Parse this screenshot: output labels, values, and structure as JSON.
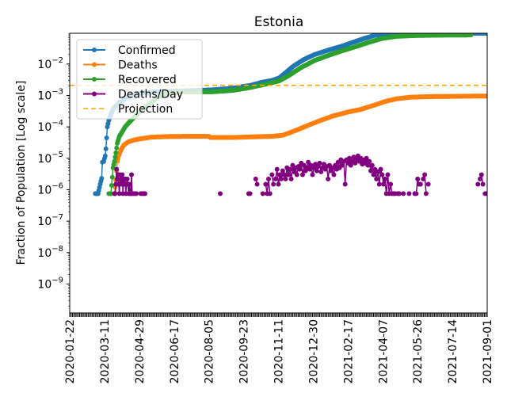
{
  "chart_data": {
    "type": "line",
    "title": "Estonia",
    "xlabel": "",
    "ylabel": "Fraction of Population [Log scale]",
    "yscale": "log",
    "ylim": [
      1.2e-10,
      0.095
    ],
    "xlim": [
      "2020-01-22",
      "2021-09-01"
    ],
    "x_start_date": "2020-01-22",
    "x_unit": "days since 2020-01-22",
    "xlim_days": [
      0,
      588
    ],
    "x_ticks": [
      {
        "day": 0,
        "label": "2020-01-22"
      },
      {
        "day": 49,
        "label": "2020-03-11"
      },
      {
        "day": 98,
        "label": "2020-04-29"
      },
      {
        "day": 147,
        "label": "2020-06-17"
      },
      {
        "day": 196,
        "label": "2020-08-05"
      },
      {
        "day": 245,
        "label": "2020-09-23"
      },
      {
        "day": 294,
        "label": "2020-11-11"
      },
      {
        "day": 343,
        "label": "2020-12-30"
      },
      {
        "day": 392,
        "label": "2021-02-17"
      },
      {
        "day": 441,
        "label": "2021-04-07"
      },
      {
        "day": 490,
        "label": "2021-05-26"
      },
      {
        "day": 539,
        "label": "2021-07-14"
      },
      {
        "day": 588,
        "label": "2021-09-01"
      }
    ],
    "y_ticks": [
      {
        "value": 0.01,
        "base": "10",
        "exp": "−2"
      },
      {
        "value": 0.001,
        "base": "10",
        "exp": "−3"
      },
      {
        "value": 0.0001,
        "base": "10",
        "exp": "−4"
      },
      {
        "value": 1e-05,
        "base": "10",
        "exp": "−5"
      },
      {
        "value": 1e-06,
        "base": "10",
        "exp": "−6"
      },
      {
        "value": 1e-07,
        "base": "10",
        "exp": "−7"
      },
      {
        "value": 1e-08,
        "base": "10",
        "exp": "−8"
      },
      {
        "value": 1e-09,
        "base": "10",
        "exp": "−9"
      }
    ],
    "grid": false,
    "legend_position": "top-left",
    "series": [
      {
        "name": "Confirmed",
        "color": "#1f77b4",
        "style": "line-marker",
        "points": [
          [
            36,
            7.5e-07
          ],
          [
            40,
            7.5e-07
          ],
          [
            43,
            1.5e-06
          ],
          [
            45,
            2.3e-06
          ],
          [
            46,
            7.5e-06
          ],
          [
            48,
            8e-06
          ],
          [
            50,
            1.2e-05
          ],
          [
            51,
            2e-05
          ],
          [
            53,
            0.0001
          ],
          [
            55,
            0.00016
          ],
          [
            58,
            0.00025
          ],
          [
            62,
            0.0004
          ],
          [
            70,
            0.0006
          ],
          [
            80,
            0.00085
          ],
          [
            95,
            0.00115
          ],
          [
            120,
            0.0013
          ],
          [
            160,
            0.0014
          ],
          [
            200,
            0.0015
          ],
          [
            230,
            0.0017
          ],
          [
            255,
            0.0021
          ],
          [
            270,
            0.0026
          ],
          [
            285,
            0.003
          ],
          [
            295,
            0.0036
          ],
          [
            305,
            0.0055
          ],
          [
            315,
            0.0085
          ],
          [
            330,
            0.014
          ],
          [
            345,
            0.02
          ],
          [
            365,
            0.028
          ],
          [
            385,
            0.038
          ],
          [
            400,
            0.05
          ],
          [
            415,
            0.065
          ],
          [
            430,
            0.082
          ],
          [
            445,
            0.09
          ],
          [
            470,
            0.092
          ],
          [
            510,
            0.093
          ],
          [
            550,
            0.094
          ],
          [
            588,
            0.095
          ]
        ]
      },
      {
        "name": "Deaths",
        "color": "#ff7f0e",
        "style": "line-marker",
        "points": [
          [
            63,
            7.5e-07
          ],
          [
            65,
            2e-06
          ],
          [
            66,
            4e-06
          ],
          [
            67,
            8e-06
          ],
          [
            69,
            1.2e-05
          ],
          [
            72,
            1.8e-05
          ],
          [
            76,
            2.6e-05
          ],
          [
            82,
            3.3e-05
          ],
          [
            90,
            3.8e-05
          ],
          [
            100,
            4.2e-05
          ],
          [
            115,
            4.7e-05
          ],
          [
            135,
            4.9e-05
          ],
          [
            165,
            5e-05
          ],
          [
            196,
            5e-05
          ],
          [
            198,
            4.6e-05
          ],
          [
            230,
            4.6e-05
          ],
          [
            255,
            4.8e-05
          ],
          [
            285,
            5e-05
          ],
          [
            300,
            5.4e-05
          ],
          [
            310,
            6.5e-05
          ],
          [
            320,
            8e-05
          ],
          [
            335,
            0.00011
          ],
          [
            350,
            0.00015
          ],
          [
            370,
            0.00022
          ],
          [
            390,
            0.00029
          ],
          [
            410,
            0.00036
          ],
          [
            430,
            0.0005
          ],
          [
            445,
            0.00065
          ],
          [
            460,
            0.00078
          ],
          [
            480,
            0.00088
          ],
          [
            510,
            0.00092
          ],
          [
            550,
            0.00094
          ],
          [
            588,
            0.00096
          ]
        ]
      },
      {
        "name": "Recovered",
        "color": "#2ca02c",
        "style": "line-marker",
        "points": [
          [
            55,
            7.5e-07
          ],
          [
            58,
            7.5e-07
          ],
          [
            60,
            2.5e-06
          ],
          [
            61,
            5e-06
          ],
          [
            63,
            8e-06
          ],
          [
            65,
            1.5e-05
          ],
          [
            67,
            3e-05
          ],
          [
            70,
            5e-05
          ],
          [
            74,
            7e-05
          ],
          [
            78,
            0.0001
          ],
          [
            85,
            0.00015
          ],
          [
            95,
            0.00025
          ],
          [
            105,
            0.0004
          ],
          [
            115,
            0.0006
          ],
          [
            125,
            0.0009
          ],
          [
            135,
            0.00115
          ],
          [
            160,
            0.0013
          ],
          [
            200,
            0.0013
          ],
          [
            230,
            0.00145
          ],
          [
            255,
            0.0018
          ],
          [
            280,
            0.0024
          ],
          [
            295,
            0.0029
          ],
          [
            310,
            0.0045
          ],
          [
            325,
            0.0075
          ],
          [
            345,
            0.013
          ],
          [
            365,
            0.019
          ],
          [
            385,
            0.027
          ],
          [
            400,
            0.034
          ],
          [
            420,
            0.048
          ],
          [
            440,
            0.065
          ],
          [
            460,
            0.076
          ],
          [
            490,
            0.081
          ],
          [
            530,
            0.083
          ],
          [
            565,
            0.084
          ]
        ]
      },
      {
        "name": "Deaths/Day",
        "color": "#800080",
        "style": "stem-marker",
        "points": [
          [
            63,
            7.5e-07
          ],
          [
            64,
            7.5e-07
          ],
          [
            65,
            1.5e-06
          ],
          [
            66,
            4.5e-06
          ],
          [
            67,
            2.2e-06
          ],
          [
            68,
            3e-06
          ],
          [
            69,
            1.5e-06
          ],
          [
            70,
            7.5e-07
          ],
          [
            71,
            3e-06
          ],
          [
            72,
            2.2e-06
          ],
          [
            73,
            1.5e-06
          ],
          [
            74,
            3e-06
          ],
          [
            75,
            7.5e-07
          ],
          [
            76,
            2.2e-06
          ],
          [
            77,
            1.5e-06
          ],
          [
            78,
            2.2e-06
          ],
          [
            79,
            7.5e-07
          ],
          [
            80,
            1.5e-06
          ],
          [
            81,
            2.2e-06
          ],
          [
            82,
            1.5e-06
          ],
          [
            83,
            7.5e-07
          ],
          [
            84,
            1.5e-06
          ],
          [
            85,
            7.5e-07
          ],
          [
            86,
            7.5e-07
          ],
          [
            87,
            3e-06
          ],
          [
            88,
            7.5e-07
          ],
          [
            90,
            7.5e-07
          ],
          [
            92,
            7.5e-07
          ],
          [
            94,
            7.5e-07
          ],
          [
            100,
            7.5e-07
          ],
          [
            102,
            7.5e-07
          ],
          [
            104,
            7.5e-07
          ],
          [
            106,
            7.5e-07
          ],
          [
            212,
            7.5e-07
          ],
          [
            252,
            7.5e-07
          ],
          [
            254,
            7.5e-07
          ],
          [
            262,
            2.2e-06
          ],
          [
            264,
            1.5e-06
          ],
          [
            272,
            7.5e-07
          ],
          [
            276,
            1.5e-06
          ],
          [
            278,
            7.5e-07
          ],
          [
            280,
            2.2e-06
          ],
          [
            282,
            7.5e-07
          ],
          [
            285,
            3e-06
          ],
          [
            287,
            1.5e-06
          ],
          [
            290,
            2.2e-06
          ],
          [
            292,
            4.5e-06
          ],
          [
            294,
            1.5e-06
          ],
          [
            296,
            3e-06
          ],
          [
            298,
            2.2e-06
          ],
          [
            300,
            4e-06
          ],
          [
            302,
            3e-06
          ],
          [
            304,
            2.2e-06
          ],
          [
            306,
            5e-06
          ],
          [
            308,
            3e-06
          ],
          [
            310,
            4.5e-06
          ],
          [
            312,
            2.2e-06
          ],
          [
            314,
            6e-06
          ],
          [
            316,
            3.7e-06
          ],
          [
            318,
            5e-06
          ],
          [
            320,
            3e-06
          ],
          [
            322,
            5.5e-06
          ],
          [
            324,
            4.5e-06
          ],
          [
            326,
            7e-06
          ],
          [
            328,
            3e-06
          ],
          [
            330,
            6e-06
          ],
          [
            332,
            4e-06
          ],
          [
            334,
            5e-06
          ],
          [
            336,
            7.5e-06
          ],
          [
            338,
            4.5e-06
          ],
          [
            340,
            6e-06
          ],
          [
            342,
            3e-06
          ],
          [
            344,
            5e-06
          ],
          [
            346,
            6.5e-06
          ],
          [
            348,
            4e-06
          ],
          [
            350,
            5.5e-06
          ],
          [
            352,
            7e-06
          ],
          [
            354,
            3.7e-06
          ],
          [
            356,
            5e-06
          ],
          [
            358,
            6.5e-06
          ],
          [
            360,
            4.5e-06
          ],
          [
            362,
            5.5e-06
          ],
          [
            364,
            2.2e-06
          ],
          [
            366,
            6e-06
          ],
          [
            368,
            4e-06
          ],
          [
            370,
            5e-06
          ],
          [
            372,
            3e-06
          ],
          [
            374,
            6e-06
          ],
          [
            376,
            4.5e-06
          ],
          [
            378,
            7.5e-06
          ],
          [
            380,
            5e-06
          ],
          [
            382,
            9e-06
          ],
          [
            384,
            6e-06
          ],
          [
            386,
            8e-06
          ],
          [
            388,
            1.5e-06
          ],
          [
            390,
            9e-06
          ],
          [
            392,
            7e-06
          ],
          [
            394,
            1e-05
          ],
          [
            396,
            6e-06
          ],
          [
            398,
            8e-06
          ],
          [
            400,
            1.1e-05
          ],
          [
            402,
            7e-06
          ],
          [
            404,
            9e-06
          ],
          [
            406,
            1.2e-05
          ],
          [
            408,
            8e-06
          ],
          [
            410,
            1e-05
          ],
          [
            412,
            6.5e-06
          ],
          [
            414,
            9e-06
          ],
          [
            416,
            7e-06
          ],
          [
            418,
            1e-05
          ],
          [
            420,
            6e-06
          ],
          [
            422,
            8e-06
          ],
          [
            424,
            4e-06
          ],
          [
            426,
            6e-06
          ],
          [
            428,
            3e-06
          ],
          [
            430,
            4.5e-06
          ],
          [
            432,
            2.2e-06
          ],
          [
            434,
            3.7e-06
          ],
          [
            436,
            1.5e-06
          ],
          [
            438,
            4.5e-06
          ],
          [
            440,
            3e-06
          ],
          [
            442,
            1.5e-06
          ],
          [
            444,
            2.2e-06
          ],
          [
            446,
            7.5e-07
          ],
          [
            448,
            3e-06
          ],
          [
            450,
            7.5e-07
          ],
          [
            452,
            1.5e-06
          ],
          [
            454,
            7.5e-07
          ],
          [
            456,
            7.5e-07
          ],
          [
            458,
            7.5e-07
          ],
          [
            462,
            7.5e-07
          ],
          [
            464,
            7.5e-07
          ],
          [
            470,
            7.5e-07
          ],
          [
            478,
            7.5e-07
          ],
          [
            486,
            7.5e-07
          ],
          [
            488,
            7.5e-07
          ],
          [
            490,
            2.2e-06
          ],
          [
            492,
            1.5e-06
          ],
          [
            494,
            1.5e-06
          ],
          [
            498,
            2.2e-06
          ],
          [
            500,
            3e-06
          ],
          [
            502,
            7.5e-07
          ],
          [
            505,
            1.5e-06
          ],
          [
            575,
            1.5e-06
          ],
          [
            578,
            2.2e-06
          ],
          [
            580,
            3e-06
          ],
          [
            582,
            1.5e-06
          ],
          [
            585,
            7.5e-07
          ],
          [
            588,
            7.5e-07
          ]
        ]
      },
      {
        "name": "Projection",
        "color": "#ffa500",
        "style": "dashed",
        "value": 0.0021
      }
    ]
  }
}
